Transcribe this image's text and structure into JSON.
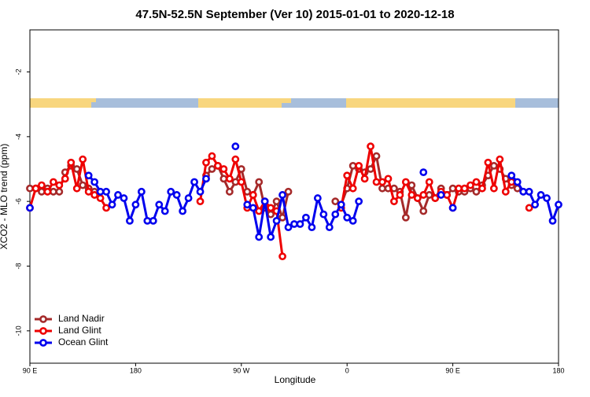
{
  "chart_data": {
    "type": "line",
    "title": "47.5N-52.5N September (Ver 10)   2015-01-01 to 2020-12-18",
    "x_label": "Longitude",
    "y_label": "XCO2 - MLO trend (ppm)",
    "x": [
      90,
      95,
      100,
      105,
      110,
      115,
      120,
      125,
      130,
      135,
      140,
      145,
      150,
      155,
      160,
      165,
      170,
      175,
      180,
      185,
      190,
      195,
      200,
      205,
      210,
      215,
      220,
      225,
      230,
      235,
      240,
      245,
      250,
      255,
      260,
      265,
      270,
      275,
      280,
      285,
      290,
      295,
      300,
      305,
      310,
      315,
      320,
      325,
      330,
      335,
      340,
      345,
      350,
      355,
      360,
      365,
      370,
      375,
      380,
      385,
      390,
      395,
      400,
      405,
      410,
      415,
      420,
      425,
      430,
      435,
      440,
      445,
      450,
      455,
      460,
      465,
      470,
      475,
      480,
      485,
      490,
      495,
      500,
      505,
      510,
      515,
      520,
      525,
      530,
      535,
      540
    ],
    "xlim": [
      90,
      540
    ],
    "xticks": [
      {
        "value": 90,
        "label": "90 E"
      },
      180,
      {
        "value": 270,
        "label": "90 W"
      },
      {
        "value": 360,
        "label": "0"
      },
      {
        "value": 450,
        "label": "90 E"
      },
      {
        "value": 540,
        "label": "180"
      }
    ],
    "ylim": [
      -11,
      -0.7
    ],
    "yticks": [
      -2,
      -4,
      -6,
      -8,
      -10
    ],
    "legend": "bottom-left",
    "series": [
      {
        "name": "Land Nadir",
        "color": "#a52a2a",
        "values": [
          -5.6,
          -5.6,
          -5.7,
          -5.6,
          -5.7,
          -5.7,
          -5.1,
          -4.9,
          -5.0,
          -5.5,
          -5.6,
          -5.7,
          null,
          null,
          null,
          null,
          null,
          null,
          null,
          null,
          null,
          null,
          null,
          null,
          null,
          null,
          null,
          null,
          null,
          null,
          -5.2,
          -5.0,
          -4.9,
          -5.3,
          -5.7,
          -5.4,
          -5.0,
          -5.7,
          -5.8,
          -5.4,
          -6.2,
          -6.4,
          -6.0,
          -6.5,
          -5.7,
          null,
          null,
          null,
          null,
          null,
          null,
          null,
          -6.0,
          -6.1,
          -5.6,
          -4.9,
          -5.0,
          -5.1,
          -5.0,
          -4.6,
          -5.6,
          -5.6,
          -5.6,
          -5.7,
          -6.5,
          -5.5,
          -5.9,
          -6.3,
          -5.8,
          -5.9,
          -5.6,
          -5.8,
          -5.6,
          -5.7,
          -5.7,
          -5.6,
          -5.7,
          -5.5,
          -5.2,
          -4.9,
          -5.0,
          -5.3,
          -5.5,
          -5.6,
          null,
          null,
          null,
          null,
          null,
          null,
          null
        ]
      },
      {
        "name": "Land Glint",
        "color": "#ee0000",
        "values": [
          -6.2,
          -5.6,
          -5.5,
          -5.7,
          -5.4,
          -5.5,
          -5.3,
          -4.8,
          -5.6,
          -4.7,
          -5.7,
          -5.8,
          -5.9,
          -6.2,
          null,
          null,
          null,
          null,
          null,
          null,
          null,
          null,
          null,
          null,
          null,
          null,
          null,
          null,
          null,
          -6.0,
          -4.8,
          -4.6,
          -4.9,
          -5.0,
          -5.3,
          -4.7,
          -5.4,
          -6.2,
          -5.8,
          -6.3,
          -6.0,
          -6.2,
          -6.3,
          -7.7,
          null,
          null,
          null,
          null,
          null,
          null,
          null,
          null,
          null,
          -6.2,
          -5.2,
          -5.6,
          -4.9,
          -5.3,
          -4.3,
          -5.4,
          -5.4,
          -5.3,
          -6.0,
          -5.8,
          -5.4,
          -5.8,
          -5.9,
          -5.8,
          -5.4,
          -5.9,
          -5.7,
          -5.8,
          -6.2,
          -5.6,
          -5.6,
          -5.5,
          -5.4,
          -5.6,
          -4.8,
          -5.6,
          -4.7,
          -5.7,
          -5.4,
          null,
          null,
          -6.2,
          null,
          null,
          null,
          null,
          null
        ]
      },
      {
        "name": "Ocean Glint",
        "color": "#0000ee",
        "values": [
          -6.2,
          null,
          null,
          null,
          null,
          null,
          null,
          null,
          null,
          null,
          -5.2,
          -5.4,
          -5.7,
          -5.7,
          -6.1,
          -5.8,
          -5.9,
          -6.6,
          -6.1,
          -5.7,
          -6.6,
          -6.6,
          -6.1,
          -6.3,
          -5.7,
          -5.8,
          -6.3,
          -5.9,
          -5.4,
          -5.7,
          -5.3,
          null,
          null,
          null,
          null,
          -4.3,
          null,
          -6.1,
          -6.2,
          -7.1,
          -6.0,
          -7.1,
          -6.6,
          -5.8,
          -6.8,
          -6.7,
          -6.7,
          -6.5,
          -6.8,
          -5.9,
          -6.4,
          -6.8,
          -6.4,
          -6.1,
          -6.5,
          -6.6,
          -6.0,
          null,
          null,
          null,
          null,
          null,
          null,
          null,
          null,
          null,
          null,
          -5.1,
          null,
          null,
          -5.8,
          null,
          -6.2,
          null,
          null,
          null,
          null,
          null,
          null,
          null,
          null,
          null,
          -5.2,
          -5.4,
          -5.7,
          -5.7,
          -6.1,
          -5.8,
          -5.9,
          -6.6,
          -6.1
        ]
      }
    ]
  }
}
